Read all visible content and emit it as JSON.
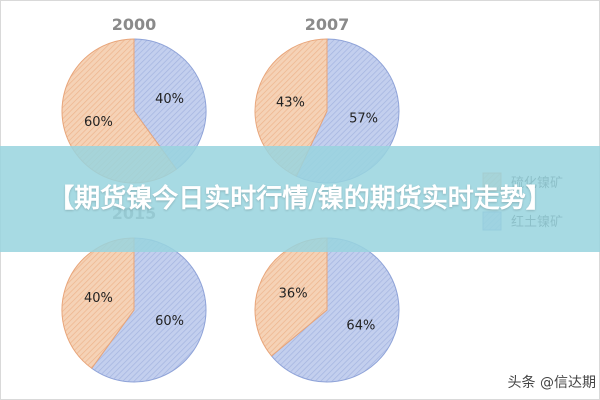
{
  "banner": {
    "title": "【期货镍今日实时行情/镍的期货实时走势】"
  },
  "watermark": "头条 @信达期",
  "chart_data": [
    {
      "type": "pie",
      "title": "2000",
      "slices": [
        {
          "label": "40%",
          "value": 40,
          "series": "红土镍矿"
        },
        {
          "label": "60%",
          "value": 60,
          "series": "硫化镍矿"
        }
      ]
    },
    {
      "type": "pie",
      "title": "2007",
      "slices": [
        {
          "label": "57%",
          "value": 57,
          "series": "红土镍矿"
        },
        {
          "label": "43%",
          "value": 43,
          "series": "硫化镍矿"
        }
      ]
    },
    {
      "type": "pie",
      "title": "2015",
      "slices": [
        {
          "label": "60%",
          "value": 60,
          "series": "红土镍矿"
        },
        {
          "label": "40%",
          "value": 40,
          "series": "硫化镍矿"
        }
      ]
    },
    {
      "type": "pie",
      "title": "",
      "slices": [
        {
          "label": "64%",
          "value": 64,
          "series": "红土镍矿"
        },
        {
          "label": "36%",
          "value": 36,
          "series": "硫化镍矿"
        }
      ]
    }
  ],
  "legend": [
    {
      "name": "硫化镍矿",
      "color": "#f2c8a8",
      "stroke": "#e8a57a"
    },
    {
      "name": "红土镍矿",
      "color": "#b8c6ea",
      "stroke": "#8fa3d8"
    }
  ]
}
